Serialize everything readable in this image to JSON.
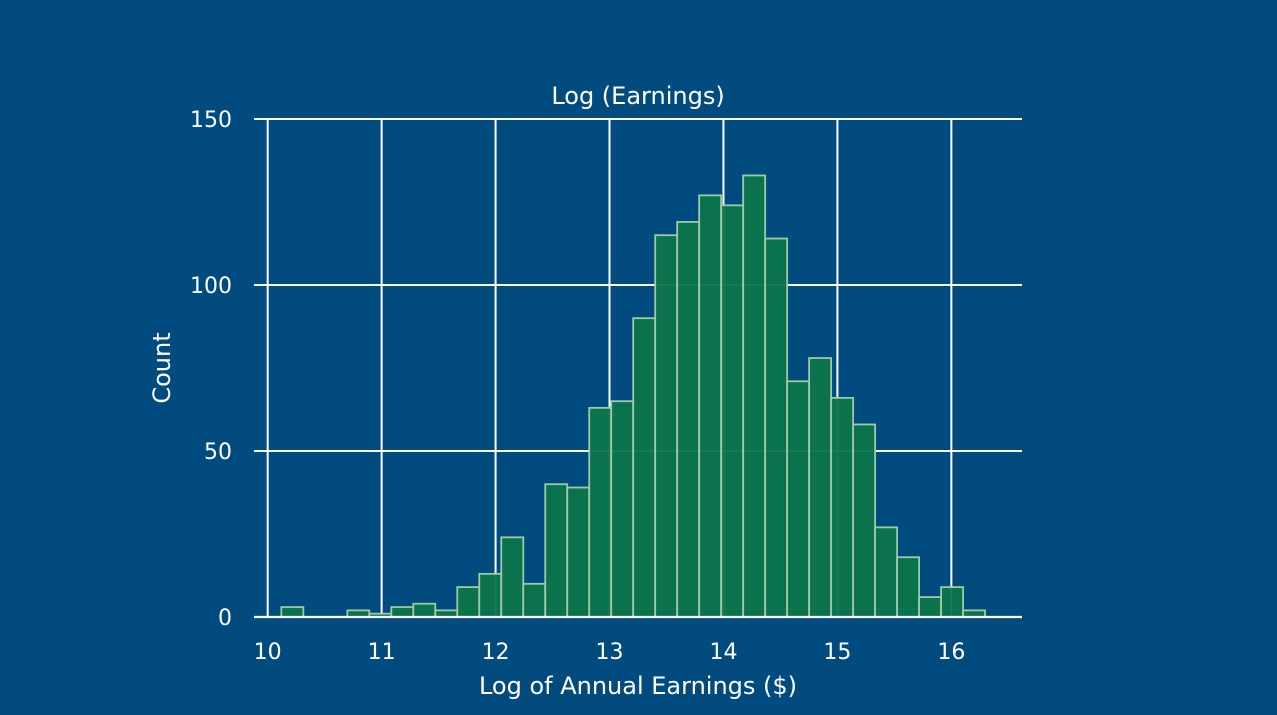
{
  "colors": {
    "background": "#014b7f",
    "bar_fill": "#0c744c",
    "bar_edge": "#9fcaa7",
    "grid": "#ffffff",
    "text": "#ffffff"
  },
  "chart_data": {
    "type": "bar",
    "title": "Log (Earnings)",
    "xlabel": "Log of Annual Earnings ($)",
    "ylabel": "Count",
    "xlim": [
      9.88,
      16.62
    ],
    "ylim": [
      0,
      150
    ],
    "xticks": [
      "10",
      "11",
      "12",
      "13",
      "14",
      "15",
      "16"
    ],
    "yticks": [
      "0",
      "50",
      "100",
      "150"
    ],
    "grid": true,
    "bin_width": 0.193,
    "bins": [
      {
        "x0": 10.12,
        "count": 3
      },
      {
        "x0": 10.313,
        "count": 0
      },
      {
        "x0": 10.506,
        "count": 0
      },
      {
        "x0": 10.699,
        "count": 2
      },
      {
        "x0": 10.892,
        "count": 1
      },
      {
        "x0": 11.085,
        "count": 3
      },
      {
        "x0": 11.278,
        "count": 4
      },
      {
        "x0": 11.471,
        "count": 2
      },
      {
        "x0": 11.664,
        "count": 9
      },
      {
        "x0": 11.857,
        "count": 13
      },
      {
        "x0": 12.05,
        "count": 24
      },
      {
        "x0": 12.243,
        "count": 10
      },
      {
        "x0": 12.436,
        "count": 40
      },
      {
        "x0": 12.629,
        "count": 39
      },
      {
        "x0": 12.822,
        "count": 63
      },
      {
        "x0": 13.015,
        "count": 65
      },
      {
        "x0": 13.208,
        "count": 90
      },
      {
        "x0": 13.401,
        "count": 115
      },
      {
        "x0": 13.594,
        "count": 119
      },
      {
        "x0": 13.787,
        "count": 127
      },
      {
        "x0": 13.98,
        "count": 124
      },
      {
        "x0": 14.173,
        "count": 133
      },
      {
        "x0": 14.366,
        "count": 114
      },
      {
        "x0": 14.559,
        "count": 71
      },
      {
        "x0": 14.752,
        "count": 78
      },
      {
        "x0": 14.945,
        "count": 66
      },
      {
        "x0": 15.138,
        "count": 58
      },
      {
        "x0": 15.331,
        "count": 27
      },
      {
        "x0": 15.524,
        "count": 18
      },
      {
        "x0": 15.717,
        "count": 6
      },
      {
        "x0": 15.91,
        "count": 9
      },
      {
        "x0": 16.103,
        "count": 2
      }
    ]
  }
}
